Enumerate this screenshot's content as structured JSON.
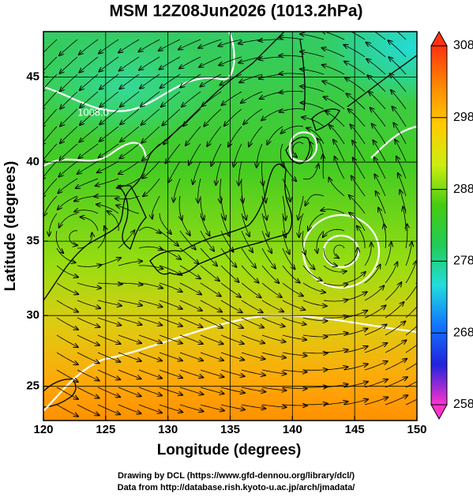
{
  "map": {
    "title": "MSM 12Z08Jun2026 (1013.2hPa)",
    "xlabel": "Longitude (degrees)",
    "ylabel": "Latitude  (degrees)",
    "projection": "mercator",
    "xlim": [
      120,
      150
    ],
    "ylim": [
      22.5,
      47.5
    ],
    "xticks": [
      120,
      125,
      130,
      135,
      140,
      145,
      150
    ],
    "yticks": [
      25,
      30,
      35,
      40,
      45
    ],
    "grid": true,
    "isobar_labels": [
      "1008.0"
    ],
    "colorbar": {
      "lim": [
        258,
        308
      ],
      "ticks": [
        258,
        268,
        278,
        288,
        298,
        308
      ],
      "colors": [
        "#ff33cc",
        "#2222dd",
        "#1177ff",
        "#22dddd",
        "#22cc55",
        "#44cc11",
        "#ccee11",
        "#ffcc00",
        "#ff8800",
        "#ff3311"
      ]
    },
    "credits": [
      "Drawing by DCL (https://www.gfd-dennou.org/library/dcl/)",
      "Data from http://database.rish.kyoto-u.ac.jp/arch/jmadata/"
    ]
  }
}
